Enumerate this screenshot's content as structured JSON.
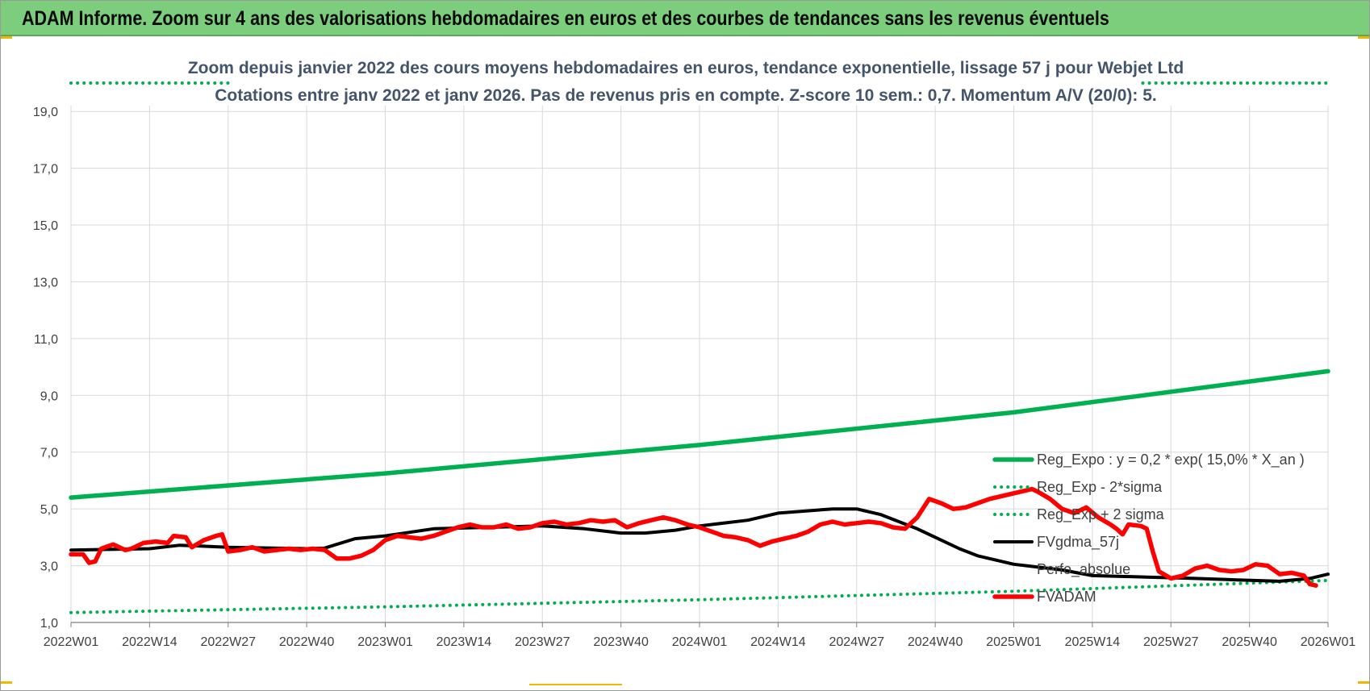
{
  "header": {
    "title": "ADAM Informe. Zoom sur 4 ans des valorisations hebdomadaires en euros et des courbes de tendances sans les revenus éventuels"
  },
  "colors": {
    "header_bg": "#7ccd7c",
    "reg_expo": "#00b050",
    "fvgdma": "#000000",
    "fvadam": "#ff0000",
    "title_text": "#44546a"
  },
  "chart_data": {
    "type": "line",
    "title_lines": [
      "Zoom depuis janvier 2022 des cours moyens hebdomadaires en euros, tendance exponentielle, lissage 57 j pour Webjet Ltd",
      "Cotations entre janv 2022 et janv 2026. Pas de revenus pris en compte. Z-score 10 sem.: 0,7. Momentum A/V (20/0): 5."
    ],
    "ylim": [
      1,
      20
    ],
    "y_ticks": [
      "1,0",
      "3,0",
      "5,0",
      "7,0",
      "9,0",
      "11,0",
      "13,0",
      "15,0",
      "17,0",
      "19,0"
    ],
    "x_ticks": [
      "2022W01",
      "2022W14",
      "2022W27",
      "2022W40",
      "2023W01",
      "2023W14",
      "2023W27",
      "2023W40",
      "2024W01",
      "2024W14",
      "2024W27",
      "2024W40",
      "2025W01",
      "2025W14",
      "2025W27",
      "2025W40",
      "2026W01"
    ],
    "legend_position": "right-middle",
    "grid": true,
    "series": [
      {
        "name": "Reg_Expo : y = 0,2 * exp( 15,0% *  X_an )",
        "style": "solid",
        "anchors": [
          [
            0,
            5.4
          ],
          [
            52,
            6.25
          ],
          [
            104,
            7.25
          ],
          [
            156,
            8.4
          ],
          [
            208,
            9.85
          ]
        ]
      },
      {
        "name": "Reg_Exp - 2*sigma",
        "style": "dotted",
        "anchors": [
          [
            0,
            1.35
          ],
          [
            52,
            1.55
          ],
          [
            104,
            1.8
          ],
          [
            156,
            2.1
          ],
          [
            208,
            2.48
          ]
        ]
      },
      {
        "name": "Reg_Exp + 2 sigma",
        "style": "dotted",
        "anchors": [
          [
            0,
            20.0
          ],
          [
            208,
            20.0
          ]
        ]
      },
      {
        "name": "FVgdma_57j",
        "style": "solid",
        "anchors": [
          [
            0,
            3.55
          ],
          [
            13,
            3.6
          ],
          [
            18,
            3.72
          ],
          [
            26,
            3.65
          ],
          [
            39,
            3.6
          ],
          [
            42,
            3.62
          ],
          [
            47,
            3.95
          ],
          [
            52,
            4.05
          ],
          [
            60,
            4.3
          ],
          [
            78,
            4.4
          ],
          [
            85,
            4.3
          ],
          [
            91,
            4.15
          ],
          [
            95,
            4.15
          ],
          [
            100,
            4.25
          ],
          [
            104,
            4.4
          ],
          [
            112,
            4.6
          ],
          [
            117,
            4.85
          ],
          [
            126,
            5.0
          ],
          [
            130,
            5.0
          ],
          [
            134,
            4.8
          ],
          [
            140,
            4.3
          ],
          [
            147,
            3.6
          ],
          [
            150,
            3.35
          ],
          [
            156,
            3.05
          ],
          [
            164,
            2.85
          ],
          [
            169,
            2.65
          ],
          [
            178,
            2.6
          ],
          [
            186,
            2.55
          ],
          [
            193,
            2.5
          ],
          [
            200,
            2.45
          ],
          [
            205,
            2.55
          ],
          [
            208,
            2.7
          ]
        ]
      },
      {
        "name": "Perfo_absolue",
        "style": "none",
        "anchors": []
      },
      {
        "name": "FVADAM",
        "style": "solid",
        "anchors": [
          [
            0,
            3.4
          ],
          [
            2,
            3.4
          ],
          [
            3,
            3.1
          ],
          [
            4,
            3.15
          ],
          [
            5,
            3.6
          ],
          [
            7,
            3.75
          ],
          [
            9,
            3.55
          ],
          [
            10,
            3.6
          ],
          [
            12,
            3.8
          ],
          [
            14,
            3.85
          ],
          [
            16,
            3.8
          ],
          [
            17,
            4.05
          ],
          [
            19,
            4.0
          ],
          [
            20,
            3.65
          ],
          [
            22,
            3.9
          ],
          [
            24,
            4.05
          ],
          [
            25,
            4.1
          ],
          [
            26,
            3.5
          ],
          [
            28,
            3.55
          ],
          [
            30,
            3.65
          ],
          [
            32,
            3.5
          ],
          [
            34,
            3.55
          ],
          [
            36,
            3.6
          ],
          [
            38,
            3.55
          ],
          [
            40,
            3.6
          ],
          [
            42,
            3.55
          ],
          [
            44,
            3.25
          ],
          [
            46,
            3.25
          ],
          [
            48,
            3.35
          ],
          [
            50,
            3.55
          ],
          [
            52,
            3.9
          ],
          [
            54,
            4.05
          ],
          [
            56,
            4.0
          ],
          [
            58,
            3.95
          ],
          [
            60,
            4.05
          ],
          [
            62,
            4.2
          ],
          [
            64,
            4.35
          ],
          [
            66,
            4.45
          ],
          [
            68,
            4.35
          ],
          [
            70,
            4.35
          ],
          [
            72,
            4.45
          ],
          [
            74,
            4.3
          ],
          [
            76,
            4.35
          ],
          [
            78,
            4.5
          ],
          [
            80,
            4.55
          ],
          [
            82,
            4.45
          ],
          [
            84,
            4.5
          ],
          [
            86,
            4.6
          ],
          [
            88,
            4.55
          ],
          [
            90,
            4.6
          ],
          [
            92,
            4.35
          ],
          [
            94,
            4.5
          ],
          [
            96,
            4.6
          ],
          [
            98,
            4.7
          ],
          [
            100,
            4.6
          ],
          [
            102,
            4.45
          ],
          [
            104,
            4.35
          ],
          [
            106,
            4.2
          ],
          [
            108,
            4.05
          ],
          [
            110,
            4.0
          ],
          [
            112,
            3.9
          ],
          [
            114,
            3.7
          ],
          [
            116,
            3.85
          ],
          [
            118,
            3.95
          ],
          [
            120,
            4.05
          ],
          [
            122,
            4.2
          ],
          [
            124,
            4.45
          ],
          [
            126,
            4.55
          ],
          [
            128,
            4.45
          ],
          [
            130,
            4.5
          ],
          [
            132,
            4.55
          ],
          [
            134,
            4.5
          ],
          [
            136,
            4.35
          ],
          [
            138,
            4.3
          ],
          [
            140,
            4.7
          ],
          [
            142,
            5.35
          ],
          [
            144,
            5.2
          ],
          [
            146,
            5.0
          ],
          [
            148,
            5.05
          ],
          [
            150,
            5.2
          ],
          [
            152,
            5.35
          ],
          [
            154,
            5.45
          ],
          [
            156,
            5.55
          ],
          [
            158,
            5.65
          ],
          [
            159,
            5.7
          ],
          [
            160,
            5.6
          ],
          [
            162,
            5.35
          ],
          [
            164,
            5.0
          ],
          [
            166,
            4.85
          ],
          [
            168,
            5.05
          ],
          [
            170,
            4.7
          ],
          [
            172,
            4.45
          ],
          [
            173,
            4.3
          ],
          [
            174,
            4.1
          ],
          [
            175,
            4.45
          ],
          [
            177,
            4.4
          ],
          [
            178,
            4.3
          ],
          [
            179,
            3.5
          ],
          [
            180,
            2.8
          ],
          [
            182,
            2.55
          ],
          [
            184,
            2.65
          ],
          [
            186,
            2.9
          ],
          [
            188,
            3.0
          ],
          [
            190,
            2.85
          ],
          [
            192,
            2.8
          ],
          [
            194,
            2.85
          ],
          [
            196,
            3.05
          ],
          [
            198,
            3.0
          ],
          [
            200,
            2.7
          ],
          [
            202,
            2.75
          ],
          [
            204,
            2.65
          ],
          [
            205,
            2.35
          ],
          [
            206,
            2.3
          ]
        ]
      }
    ]
  }
}
